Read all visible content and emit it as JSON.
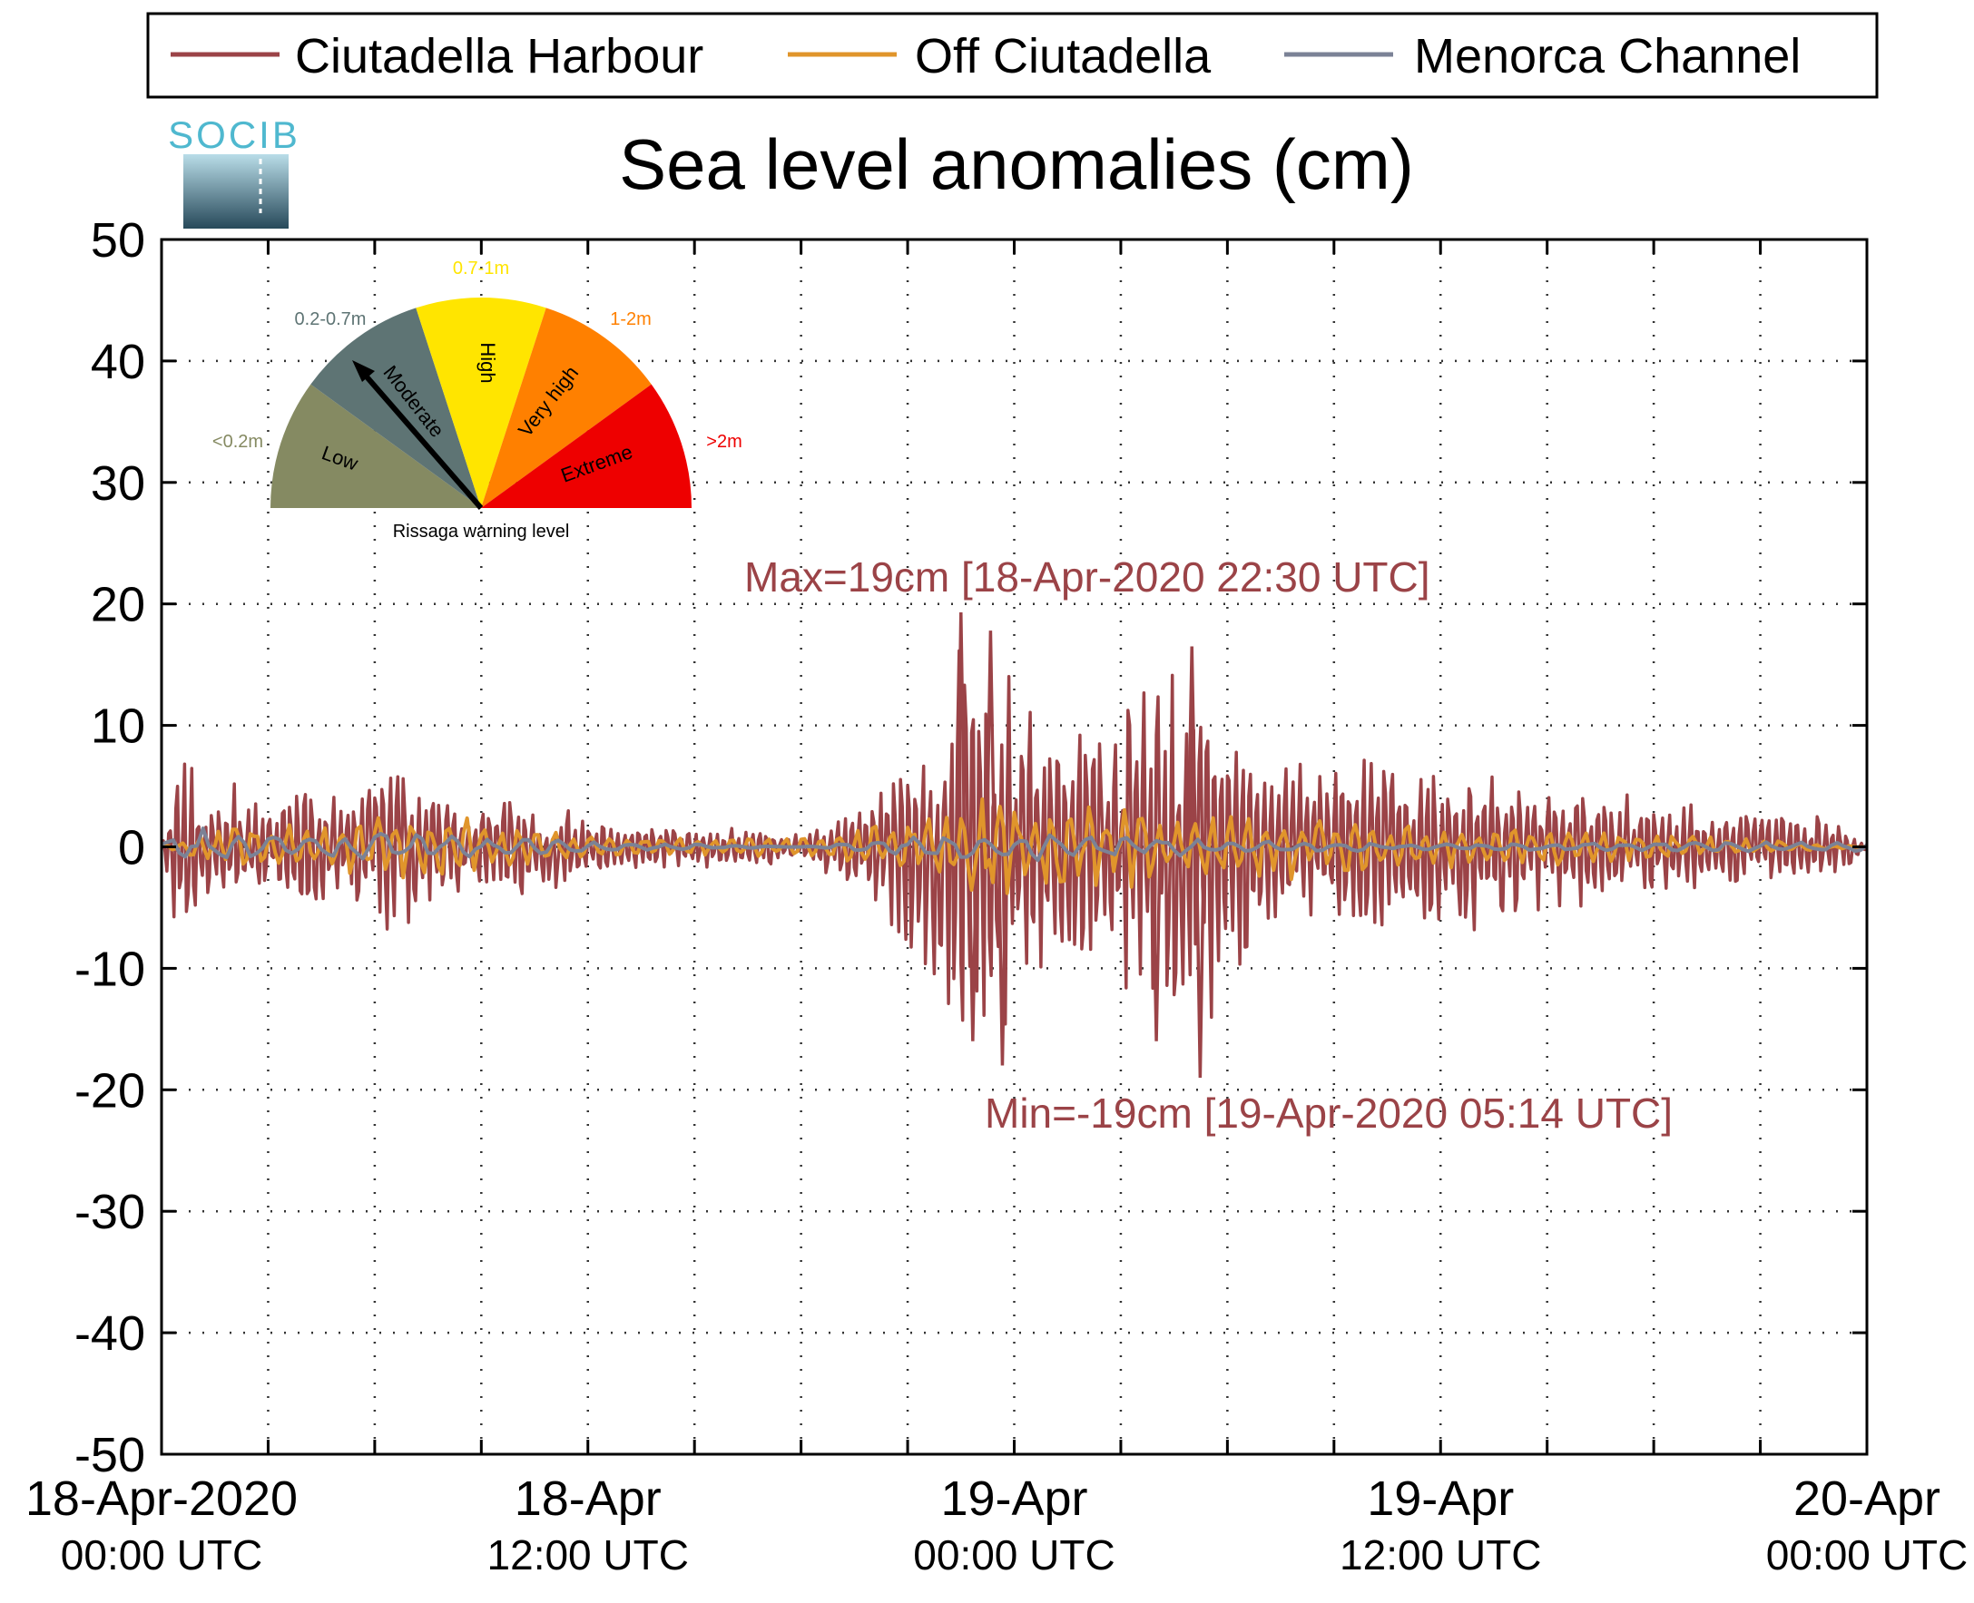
{
  "chart_data": {
    "type": "line",
    "title": "Sea level anomalies (cm)",
    "xlabel": "",
    "ylabel": "",
    "ylim": [
      -50,
      50
    ],
    "yticks": [
      50,
      40,
      30,
      20,
      10,
      0,
      -10,
      -20,
      -30,
      -40,
      -50
    ],
    "yticks_labels": [
      "50",
      "40",
      "30",
      "20",
      "10",
      "0",
      "-10",
      "-20",
      "-30",
      "-40",
      "-50"
    ],
    "xlim": [
      "2020-04-18 00:00",
      "2020-04-20 00:00"
    ],
    "xticks": [
      {
        "t": "2020-04-18 00:00",
        "line1": "18-Apr-2020",
        "line2": "00:00 UTC"
      },
      {
        "t": "2020-04-18 12:00",
        "line1": "18-Apr",
        "line2": "12:00 UTC"
      },
      {
        "t": "2020-04-19 00:00",
        "line1": "19-Apr",
        "line2": "00:00 UTC"
      },
      {
        "t": "2020-04-19 12:00",
        "line1": "19-Apr",
        "line2": "12:00 UTC"
      },
      {
        "t": "2020-04-20 00:00",
        "line1": "20-Apr",
        "line2": "00:00 UTC"
      }
    ],
    "grid": true,
    "legend_position": "top",
    "series": [
      {
        "name": "Ciutadella Harbour",
        "color": "#9b4347",
        "points": [
          [
            "2020-04-18 00:00",
            0
          ],
          [
            "2020-04-18 00:20",
            9.7
          ],
          [
            "2020-04-18 00:40",
            -11.5
          ],
          [
            "2020-04-18 01:00",
            5
          ],
          [
            "2020-04-18 02:00",
            -6
          ],
          [
            "2020-04-18 03:00",
            4
          ],
          [
            "2020-04-18 04:00",
            -7
          ],
          [
            "2020-04-18 05:00",
            5
          ],
          [
            "2020-04-18 06:00",
            -7
          ],
          [
            "2020-04-18 06:30",
            11.5
          ],
          [
            "2020-04-18 06:40",
            -9.3
          ],
          [
            "2020-04-18 08:00",
            4
          ],
          [
            "2020-04-18 10:00",
            -5.5
          ],
          [
            "2020-04-18 12:00",
            3
          ],
          [
            "2020-04-18 15:00",
            -2
          ],
          [
            "2020-04-18 18:00",
            1.5
          ],
          [
            "2020-04-18 20:00",
            5
          ],
          [
            "2020-04-18 21:00",
            -10
          ],
          [
            "2020-04-18 22:30",
            19.3
          ],
          [
            "2020-04-18 22:50",
            -16
          ],
          [
            "2020-04-18 23:20",
            17.8
          ],
          [
            "2020-04-18 23:40",
            -18
          ],
          [
            "2020-04-19 01:00",
            11
          ],
          [
            "2020-04-19 02:00",
            -13
          ],
          [
            "2020-04-19 03:00",
            13
          ],
          [
            "2020-04-19 04:00",
            -16
          ],
          [
            "2020-04-19 05:00",
            16.5
          ],
          [
            "2020-04-19 05:14",
            -19
          ],
          [
            "2020-04-19 07:00",
            9
          ],
          [
            "2020-04-19 09:00",
            -9
          ],
          [
            "2020-04-19 11:00",
            8
          ],
          [
            "2020-04-19 13:00",
            -8
          ],
          [
            "2020-04-19 15:00",
            6
          ],
          [
            "2020-04-19 17:00",
            -5
          ],
          [
            "2020-04-19 20:00",
            4
          ],
          [
            "2020-04-19 23:00",
            -3
          ],
          [
            "2020-04-20 00:00",
            0.5
          ]
        ]
      },
      {
        "name": "Off Ciutadella",
        "color": "#e0952b",
        "points": [
          [
            "2020-04-18 00:00",
            0
          ],
          [
            "2020-04-18 02:00",
            2.5
          ],
          [
            "2020-04-18 04:00",
            -2
          ],
          [
            "2020-04-18 06:00",
            3.5
          ],
          [
            "2020-04-18 08:00",
            -3
          ],
          [
            "2020-04-18 12:00",
            1
          ],
          [
            "2020-04-18 18:00",
            -1
          ],
          [
            "2020-04-18 22:00",
            3
          ],
          [
            "2020-04-18 23:00",
            -5
          ],
          [
            "2020-04-19 01:00",
            3.5
          ],
          [
            "2020-04-19 03:00",
            -4
          ],
          [
            "2020-04-19 05:00",
            3
          ],
          [
            "2020-04-19 08:00",
            -3
          ],
          [
            "2020-04-19 12:00",
            2
          ],
          [
            "2020-04-19 18:00",
            -1.5
          ],
          [
            "2020-04-20 00:00",
            0
          ]
        ]
      },
      {
        "name": "Menorca Channel",
        "color": "#7b8296",
        "points": [
          [
            "2020-04-18 00:00",
            0.5
          ],
          [
            "2020-04-18 01:00",
            2
          ],
          [
            "2020-04-18 03:00",
            -1
          ],
          [
            "2020-04-18 06:00",
            1.5
          ],
          [
            "2020-04-18 12:00",
            0.5
          ],
          [
            "2020-04-18 18:00",
            0
          ],
          [
            "2020-04-18 23:00",
            1.5
          ],
          [
            "2020-04-19 03:00",
            1
          ],
          [
            "2020-04-19 08:00",
            0.5
          ],
          [
            "2020-04-19 12:00",
            0.3
          ],
          [
            "2020-04-19 18:00",
            0.4
          ],
          [
            "2020-04-20 00:00",
            0.5
          ]
        ]
      }
    ],
    "annotations": [
      {
        "text": "Max=19cm [18-Apr-2020 22:30 UTC]",
        "color": "#9b4347"
      },
      {
        "text": "Min=-19cm [19-Apr-2020 05:14 UTC]",
        "color": "#9b4347"
      }
    ]
  },
  "logo": {
    "text": "SOCIB"
  },
  "gauge": {
    "caption": "Rissaga warning level",
    "current_level": "Moderate",
    "segments": [
      {
        "label": "Low",
        "range": "<0.2m",
        "color": "#858a62"
      },
      {
        "label": "Moderate",
        "range": "0.2-0.7m",
        "color": "#5e7474"
      },
      {
        "label": "High",
        "range": "0.7-1m",
        "color": "#ffe500"
      },
      {
        "label": "Very high",
        "range": "1-2m",
        "color": "#ff8000"
      },
      {
        "label": "Extreme",
        "range": ">2m",
        "color": "#ee0000"
      }
    ]
  }
}
